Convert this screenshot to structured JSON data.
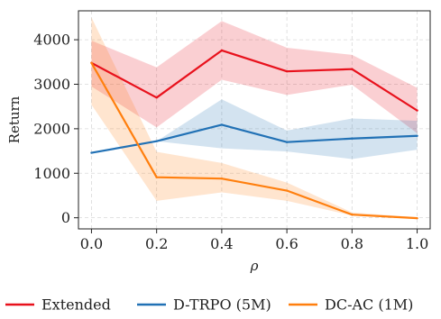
{
  "chart_data": {
    "type": "line",
    "xlabel": "ρ",
    "ylabel": "Return",
    "xlim": [
      -0.04,
      1.04
    ],
    "ylim": [
      -250,
      4650
    ],
    "xticks": [
      0.0,
      0.2,
      0.4,
      0.6,
      0.8,
      1.0
    ],
    "xtick_labels": [
      "0.0",
      "0.2",
      "0.4",
      "0.6",
      "0.8",
      "1.0"
    ],
    "yticks": [
      0,
      1000,
      2000,
      3000,
      4000
    ],
    "ytick_labels": [
      "0",
      "1000",
      "2000",
      "3000",
      "4000"
    ],
    "grid": true,
    "legend_position": "bottom",
    "x": [
      0.0,
      0.2,
      0.4,
      0.6,
      0.8,
      1.0
    ],
    "series": [
      {
        "name": "Extended",
        "color": "#e8111c",
        "values": [
          3480,
          2700,
          3760,
          3290,
          3340,
          2410
        ],
        "lower": [
          2950,
          2030,
          3100,
          2760,
          2990,
          1900
        ],
        "upper": [
          3980,
          3380,
          4420,
          3820,
          3660,
          2920
        ]
      },
      {
        "name": "D-TRPO (5M)",
        "color": "#2171b5",
        "values": [
          1460,
          1720,
          2090,
          1700,
          1780,
          1840
        ],
        "lower": [
          1460,
          1720,
          1560,
          1490,
          1320,
          1530
        ],
        "upper": [
          1460,
          1720,
          2660,
          1960,
          2230,
          2180
        ]
      },
      {
        "name": "DC-AC (1M)",
        "color": "#ff7f0e",
        "values": [
          3480,
          910,
          880,
          610,
          70,
          -10
        ],
        "lower": [
          2540,
          380,
          570,
          380,
          50,
          -30
        ],
        "upper": [
          4500,
          1480,
          1230,
          790,
          120,
          10
        ]
      }
    ]
  }
}
